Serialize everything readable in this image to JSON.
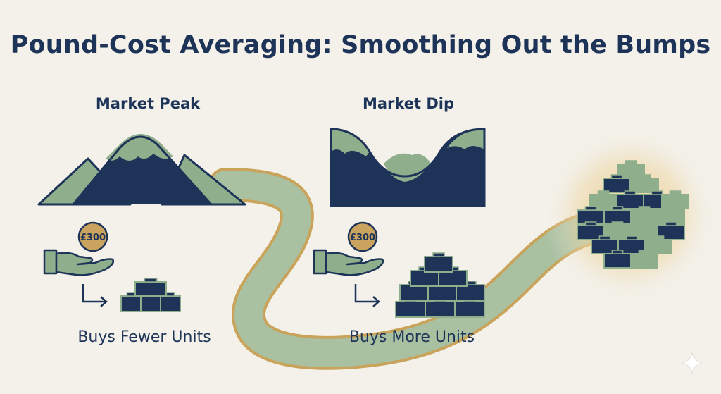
{
  "title": "Pound-Cost Averaging: Smoothing Out the Bumps",
  "panels": {
    "peak": {
      "label": "Market Peak",
      "amount": "£300",
      "caption": "Buys Fewer Units"
    },
    "dip": {
      "label": "Market Dip",
      "amount": "£300",
      "caption": "Buys More Units"
    }
  },
  "colors": {
    "background": "#f3f1ea",
    "navy": "#1d3358",
    "sage": "#8fae8c",
    "gold": "#c9a35a",
    "coin": "#caa35f"
  },
  "icons": [
    "mountain-peak-icon",
    "valley-dip-icon",
    "coin-icon",
    "open-hand-icon",
    "arrow-icon",
    "blocks-icon",
    "sparkle-icon"
  ]
}
